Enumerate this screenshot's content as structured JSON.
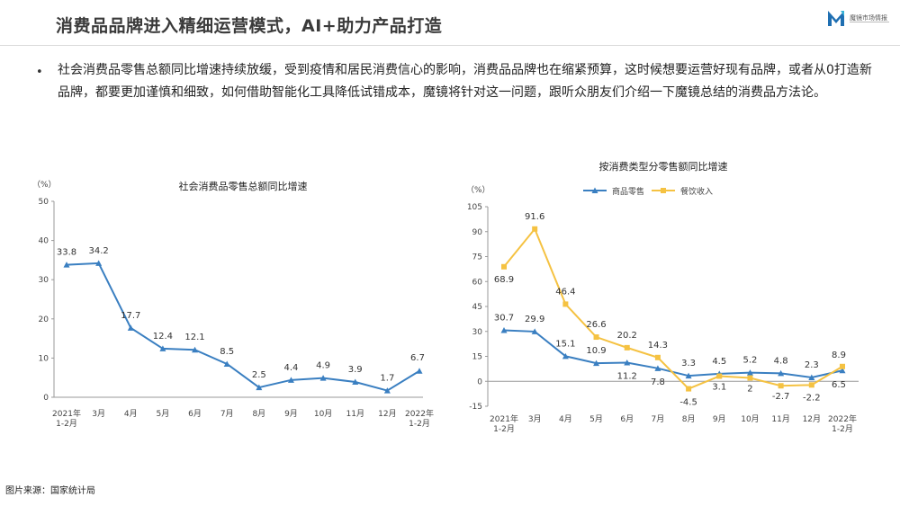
{
  "header": {
    "title": "消费品品牌进入精细运营模式，AI+助力产品打造",
    "logo_text": "魔镜市场情报",
    "logo_color": "#1f6fb2"
  },
  "bullet": {
    "text": "社会消费品零售总额同比增速持续放缓，受到疫情和居民消费信心的影响，消费品品牌也在缩紧预算，这时候想要运营好现有品牌，或者从0打造新品牌，都要更加谨慎和细致，如何借助智能化工具降低试错成本，魔镜将针对这一问题，跟听众朋友们介绍一下魔镜总结的消费品方法论。"
  },
  "source": "图片来源：国家统计局",
  "chart_data": [
    {
      "type": "line",
      "title": "社会消费品零售总额同比增速",
      "ylabel": "（%）",
      "categories": [
        "2021年\n1-2月",
        "3月",
        "4月",
        "5月",
        "6月",
        "7月",
        "8月",
        "9月",
        "10月",
        "11月",
        "12月",
        "2022年\n1-2月"
      ],
      "series": [
        {
          "values": [
            33.8,
            34.2,
            17.7,
            12.4,
            12.1,
            8.5,
            2.5,
            4.4,
            4.9,
            3.9,
            1.7,
            6.7
          ],
          "color": "#3a7fc1"
        }
      ],
      "yticks": [
        0,
        10,
        20,
        30,
        40,
        50
      ],
      "ylim": [
        0,
        50
      ],
      "grid": false
    },
    {
      "type": "line",
      "title": "按消费类型分零售额同比增速",
      "ylabel": "（%）",
      "categories": [
        "2021年\n1-2月",
        "3月",
        "4月",
        "5月",
        "6月",
        "7月",
        "8月",
        "9月",
        "10月",
        "11月",
        "12月",
        "2022年\n1-2月"
      ],
      "series": [
        {
          "name": "商品零售",
          "values": [
            30.7,
            29.9,
            15.1,
            10.9,
            11.2,
            7.8,
            3.3,
            4.5,
            5.2,
            4.8,
            2.3,
            6.5
          ],
          "color": "#3a7fc1"
        },
        {
          "name": "餐饮收入",
          "values": [
            68.9,
            91.6,
            46.4,
            26.6,
            20.2,
            14.3,
            -4.5,
            3.1,
            2.0,
            -2.7,
            -2.2,
            8.9
          ],
          "color": "#f5c242"
        }
      ],
      "yticks": [
        -15,
        0,
        15,
        30,
        45,
        60,
        75,
        90,
        105
      ],
      "ylim": [
        -15,
        105
      ],
      "legend": "top",
      "grid": false
    }
  ]
}
